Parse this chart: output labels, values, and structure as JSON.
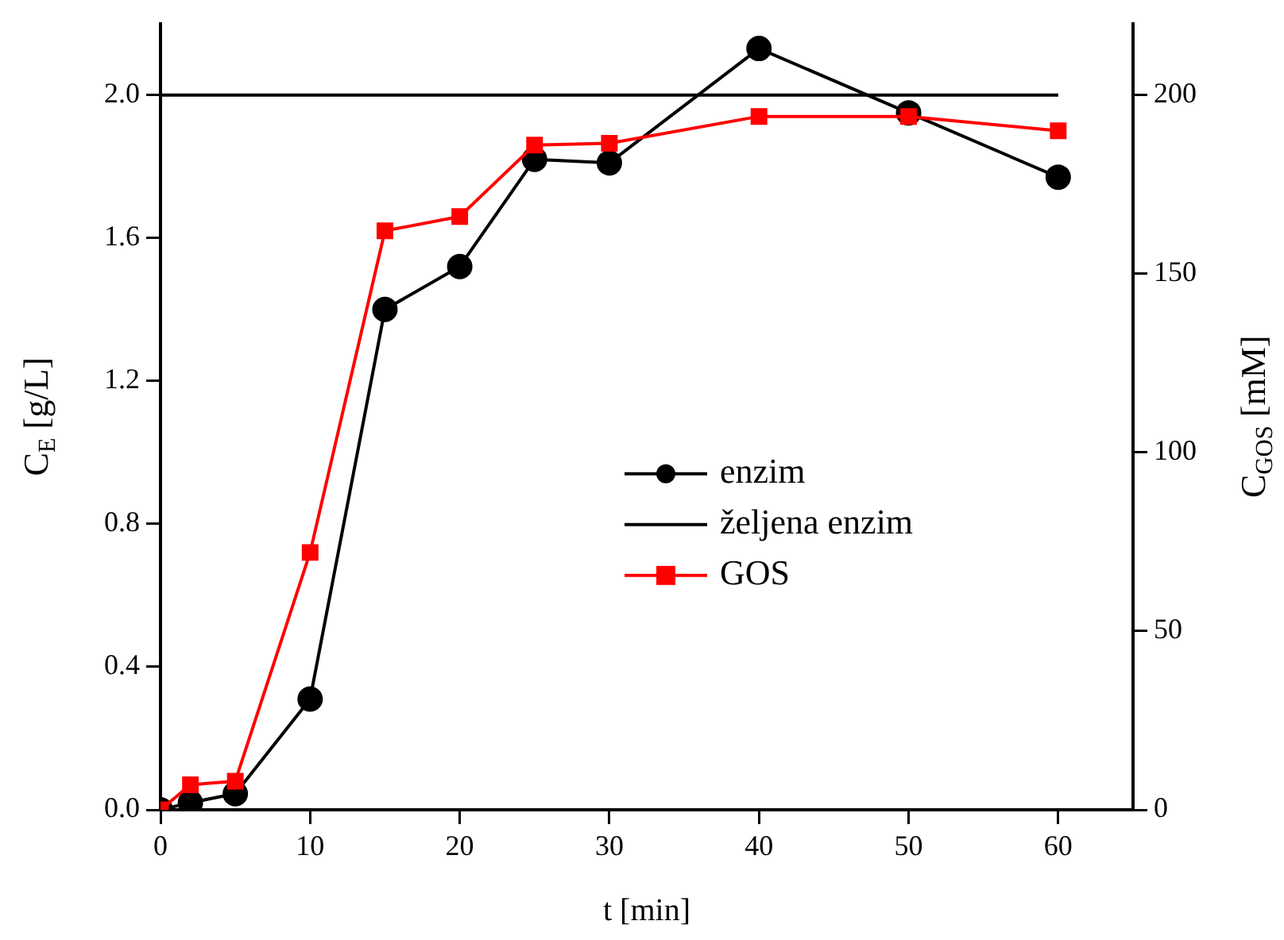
{
  "chart_data": {
    "type": "line",
    "xlabel": "t [min]",
    "ylabel": "C$_{E}$ [g/L]",
    "y2label": "C$_{GOS}$ [mM]",
    "xlim": [
      0,
      65
    ],
    "xticks": [
      0,
      10,
      20,
      30,
      40,
      50,
      60
    ],
    "ylim": [
      0,
      2.2
    ],
    "yticks": [
      {
        "value": 0,
        "label": "0.0"
      },
      0.4,
      0.8,
      1.2,
      1.6,
      {
        "value": 2,
        "label": "2.0"
      }
    ],
    "y2lim": [
      0,
      220
    ],
    "y2ticks": [
      0,
      50,
      100,
      150,
      200
    ],
    "grid": false,
    "legend": "right",
    "series": [
      {
        "name": "enzim",
        "color": "#000000",
        "marker": "circle",
        "x": [
          0,
          2,
          5,
          10,
          15,
          20,
          25,
          30,
          40,
          50,
          60
        ],
        "values": [
          0,
          0.02,
          0.045,
          0.31,
          1.4,
          1.52,
          1.82,
          1.81,
          2.13,
          1.95,
          1.77
        ]
      },
      {
        "name": "željena enzim",
        "color": "#000000",
        "marker": "none",
        "x": [
          0,
          60
        ],
        "values": [
          2,
          2
        ]
      },
      {
        "name": "GOS",
        "color": "#ff0000",
        "marker": "square",
        "axis": "y2",
        "x": [
          0,
          2,
          5,
          10,
          15,
          20,
          25,
          30,
          40,
          50,
          60
        ],
        "values": [
          0,
          7,
          8,
          72,
          162,
          166,
          186,
          186.5,
          194,
          194,
          190
        ]
      }
    ]
  }
}
